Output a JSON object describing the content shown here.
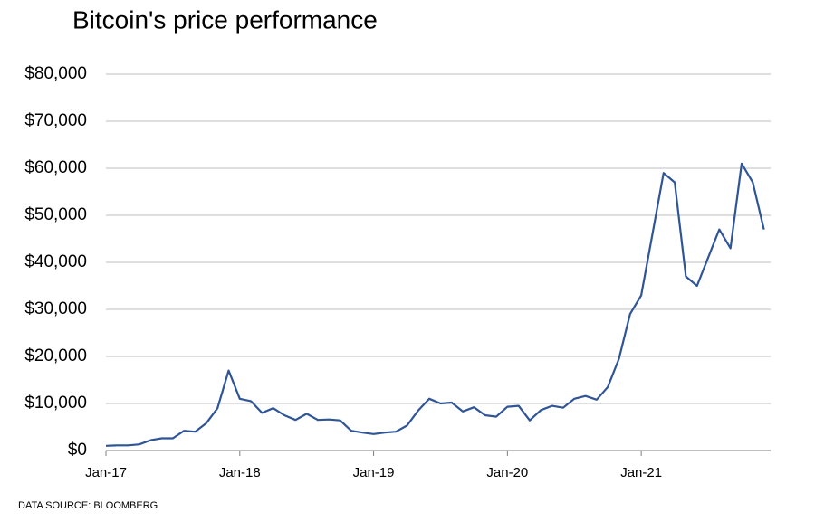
{
  "chart_data": {
    "type": "line",
    "title": "Bitcoin's price performance",
    "source": "DATA SOURCE: BLOOMBERG",
    "x": [
      "2017-01",
      "2017-02",
      "2017-03",
      "2017-04",
      "2017-05",
      "2017-06",
      "2017-07",
      "2017-08",
      "2017-09",
      "2017-10",
      "2017-11",
      "2017-12",
      "2018-01",
      "2018-02",
      "2018-03",
      "2018-04",
      "2018-05",
      "2018-06",
      "2018-07",
      "2018-08",
      "2018-09",
      "2018-10",
      "2018-11",
      "2018-12",
      "2019-01",
      "2019-02",
      "2019-03",
      "2019-04",
      "2019-05",
      "2019-06",
      "2019-07",
      "2019-08",
      "2019-09",
      "2019-10",
      "2019-11",
      "2019-12",
      "2020-01",
      "2020-02",
      "2020-03",
      "2020-04",
      "2020-05",
      "2020-06",
      "2020-07",
      "2020-08",
      "2020-09",
      "2020-10",
      "2020-11",
      "2020-12",
      "2021-01",
      "2021-02",
      "2021-03",
      "2021-04",
      "2021-05",
      "2021-06",
      "2021-07",
      "2021-08",
      "2021-09",
      "2021-10",
      "2021-11",
      "2021-12"
    ],
    "series": [
      {
        "name": "Bitcoin",
        "color": "#2f5597",
        "values": [
          1000,
          1100,
          1100,
          1300,
          2200,
          2600,
          2600,
          4200,
          4000,
          5800,
          9000,
          17000,
          11000,
          10500,
          8000,
          9000,
          7500,
          6500,
          7800,
          6500,
          6600,
          6400,
          4200,
          3800,
          3500,
          3800,
          4000,
          5300,
          8500,
          11000,
          10000,
          10200,
          8300,
          9200,
          7500,
          7200,
          9300,
          9500,
          6400,
          8600,
          9500,
          9100,
          11000,
          11600,
          10800,
          13500,
          19500,
          29000,
          33000,
          46000,
          59000,
          57000,
          37000,
          35000,
          41000,
          47000,
          43000,
          61000,
          57000,
          47000
        ]
      }
    ],
    "xlim": [
      "2017-01",
      "2021-12"
    ],
    "xticks": [
      {
        "value": "2017-01",
        "label": "Jan-17"
      },
      {
        "value": "2018-01",
        "label": "Jan-18"
      },
      {
        "value": "2019-01",
        "label": "Jan-19"
      },
      {
        "value": "2020-01",
        "label": "Jan-20"
      },
      {
        "value": "2021-01",
        "label": "Jan-21"
      }
    ],
    "ylim": [
      0,
      80000
    ],
    "yticks": [
      {
        "value": 0,
        "label": "$0"
      },
      {
        "value": 10000,
        "label": "$10,000"
      },
      {
        "value": 20000,
        "label": "$20,000"
      },
      {
        "value": 30000,
        "label": "$30,000"
      },
      {
        "value": 40000,
        "label": "$40,000"
      },
      {
        "value": 50000,
        "label": "$50,000"
      },
      {
        "value": 60000,
        "label": "$60,000"
      },
      {
        "value": 70000,
        "label": "$70,000"
      },
      {
        "value": 80000,
        "label": "$80,000"
      }
    ],
    "grid": true
  }
}
